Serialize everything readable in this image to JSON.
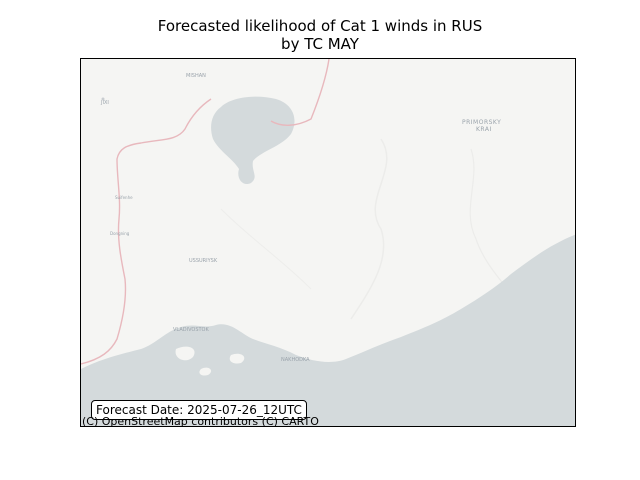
{
  "title": {
    "line1": "Forecasted likelihood of Cat 1 winds in RUS",
    "line2": "by TC MAY"
  },
  "map": {
    "place_labels": {
      "mishan": "MISHAN",
      "jixi": "JIXI",
      "primorsky": "PRIMORSKY",
      "krai": "KRAI",
      "suifenhe": "Suifenhe",
      "dongning": "Dongning",
      "ussuriysk": "USSURIYSK",
      "vladivostok": "VLADIVOSTOK",
      "nakhodka": "NAKHODKA"
    },
    "colors": {
      "land": "#f5f5f3",
      "water": "#d4dadc",
      "border": "#e8b8bd",
      "label": "#9aa3ab"
    }
  },
  "forecast_label": "Forecast Date: 2025-07-26_12UTC",
  "attribution": "(C) OpenStreetMap contributors (C) CARTO"
}
